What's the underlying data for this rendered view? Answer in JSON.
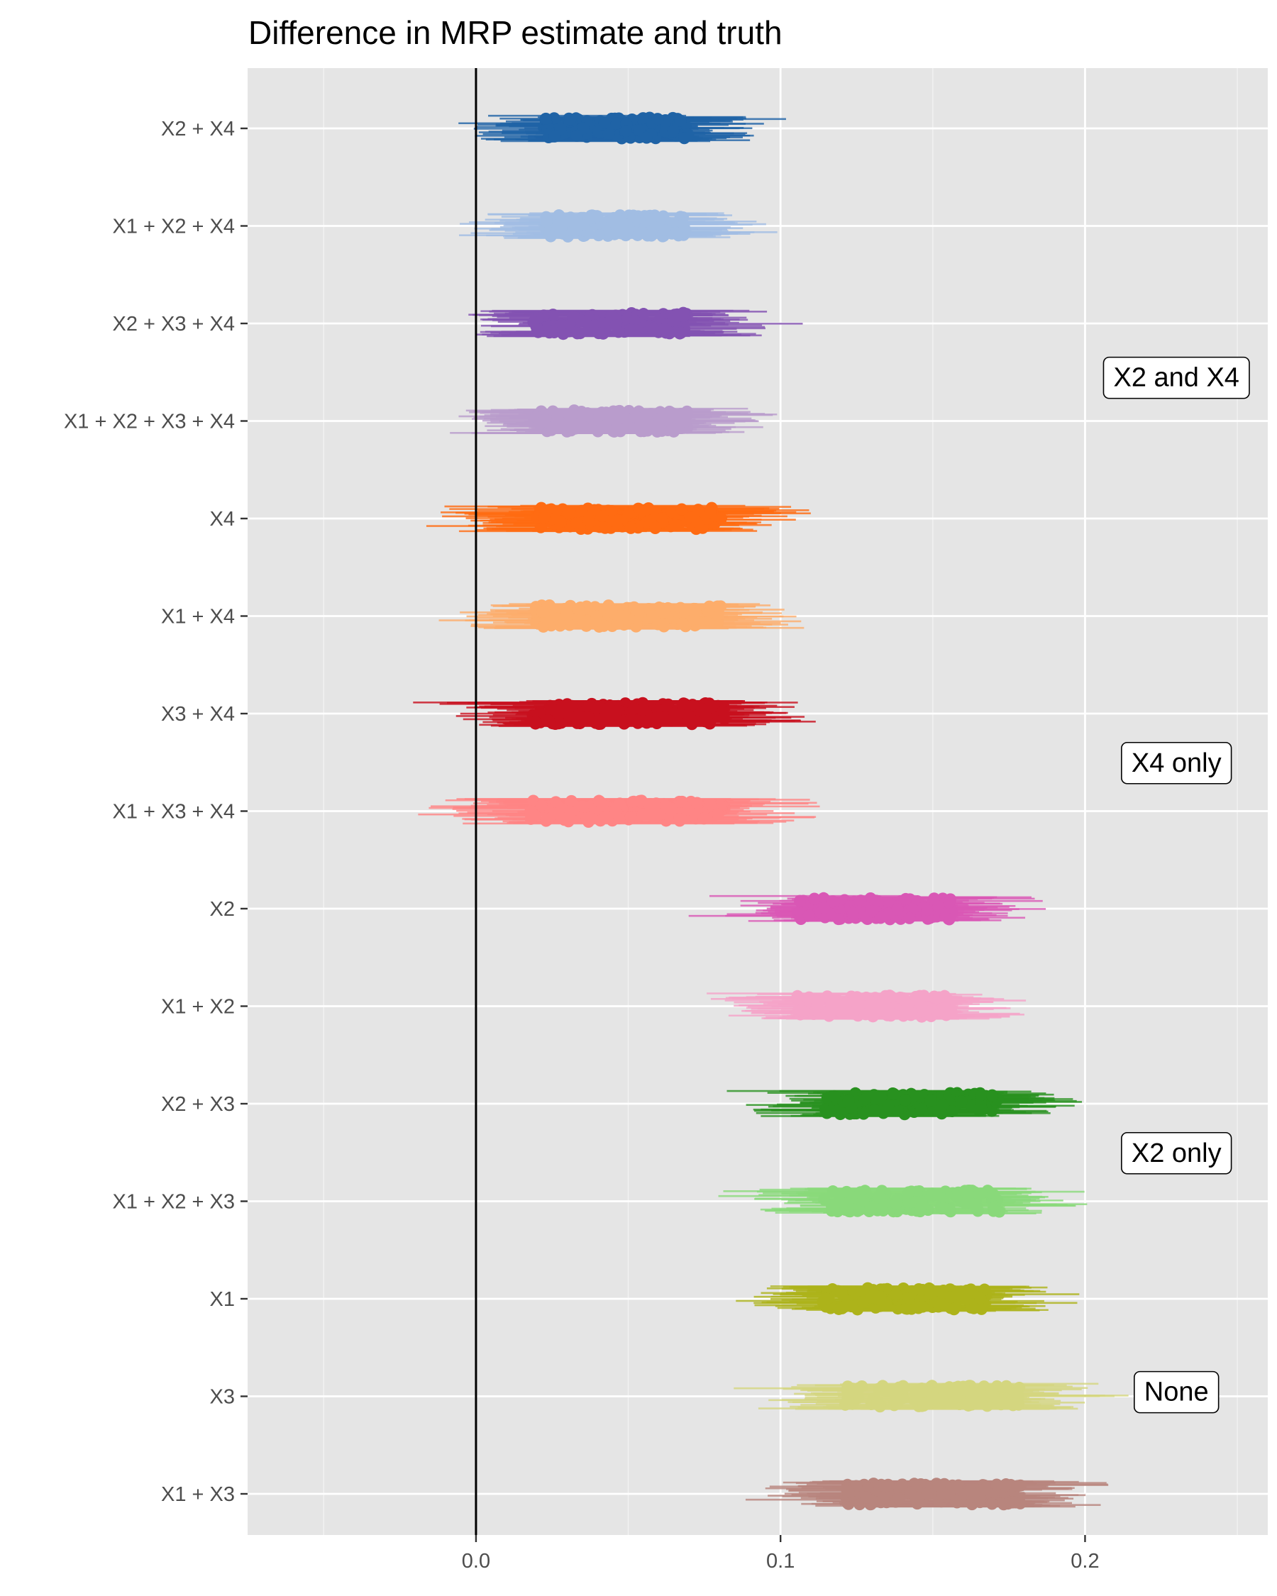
{
  "chart_data": {
    "type": "scatter",
    "title": "Difference in MRP estimate and truth",
    "xlabel": "",
    "ylabel": "",
    "xlim": [
      -0.075,
      0.26
    ],
    "x_ticks": [
      "0.0",
      "0.1",
      "0.2"
    ],
    "x_tick_values": [
      0.0,
      0.1,
      0.2
    ],
    "x_minor_gridlines": [
      -0.05,
      0.05,
      0.15,
      0.25
    ],
    "grid": true,
    "background": "#e5e5e5",
    "reference_line": {
      "x": 0.0,
      "color": "#000000"
    },
    "series": [
      {
        "name": "X2 + X4",
        "color": "#1f63a6",
        "center": 0.046,
        "spread": 0.014,
        "interval_halfwidth": 0.03
      },
      {
        "name": "X1 + X2 + X4",
        "color": "#a1bde3",
        "center": 0.046,
        "spread": 0.014,
        "interval_halfwidth": 0.03
      },
      {
        "name": "X2 + X3 + X4",
        "color": "#8352b2",
        "center": 0.044,
        "spread": 0.015,
        "interval_halfwidth": 0.032
      },
      {
        "name": "X1 + X2 + X3 + X4",
        "color": "#b99ccc",
        "center": 0.044,
        "spread": 0.015,
        "interval_halfwidth": 0.032
      },
      {
        "name": "X4",
        "color": "#ff6b12",
        "center": 0.05,
        "spread": 0.018,
        "interval_halfwidth": 0.035
      },
      {
        "name": "X1 + X4",
        "color": "#fdad6b",
        "center": 0.05,
        "spread": 0.018,
        "interval_halfwidth": 0.035
      },
      {
        "name": "X3 + X4",
        "color": "#c8101e",
        "center": 0.05,
        "spread": 0.019,
        "interval_halfwidth": 0.037
      },
      {
        "name": "X1 + X3 + X4",
        "color": "#ff8585",
        "center": 0.05,
        "spread": 0.019,
        "interval_halfwidth": 0.037
      },
      {
        "name": "X2",
        "color": "#d957b5",
        "center": 0.131,
        "spread": 0.015,
        "interval_halfwidth": 0.03
      },
      {
        "name": "X1 + X2",
        "color": "#f5a3c8",
        "center": 0.131,
        "spread": 0.015,
        "interval_halfwidth": 0.03
      },
      {
        "name": "X2 + X3",
        "color": "#28911f",
        "center": 0.143,
        "spread": 0.017,
        "interval_halfwidth": 0.032
      },
      {
        "name": "X1 + X2 + X3",
        "color": "#89d97a",
        "center": 0.143,
        "spread": 0.017,
        "interval_halfwidth": 0.032
      },
      {
        "name": "X1",
        "color": "#adb31a",
        "center": 0.141,
        "spread": 0.016,
        "interval_halfwidth": 0.033
      },
      {
        "name": "X3",
        "color": "#d4d67f",
        "center": 0.15,
        "spread": 0.017,
        "interval_halfwidth": 0.033
      },
      {
        "name": "X1 + X3",
        "color": "#b8857d",
        "center": 0.15,
        "spread": 0.017,
        "interval_halfwidth": 0.033
      }
    ],
    "annotations": [
      {
        "text": "X2 and X4",
        "x": 0.23,
        "row": 2.55
      },
      {
        "text": "X4 only",
        "x": 0.23,
        "row": 6.5
      },
      {
        "text": "X2 only",
        "x": 0.23,
        "row": 10.5
      },
      {
        "text": "None",
        "x": 0.23,
        "row": 12.95
      }
    ]
  }
}
